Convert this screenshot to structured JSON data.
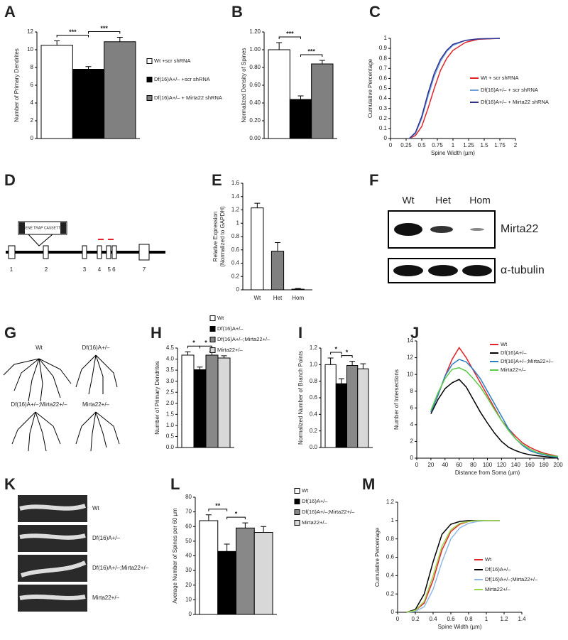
{
  "figure": {
    "panel_labels": [
      "A",
      "B",
      "C",
      "D",
      "E",
      "F",
      "G",
      "H",
      "I",
      "J",
      "K",
      "L",
      "M"
    ],
    "d": {
      "cassette": "GENE TRAP CASSETTE",
      "exons": [
        "1",
        "2",
        "3",
        "4",
        "5 6",
        "7"
      ]
    },
    "f": {
      "lanes": [
        "Wt",
        "Het",
        "Hom"
      ],
      "bands": [
        "Mirta22",
        "α-tubulin"
      ]
    },
    "g": {
      "labels": [
        "Wt",
        "Df(16)A+/–",
        "Df(16)A+/–;Mirta22+/–",
        "Mirta22+/–"
      ]
    },
    "k": {
      "labels": [
        "Wt",
        "Df(16)A+/–",
        "Df(16)A+/–;Mirta22+/–",
        "Mirta22+/–"
      ]
    }
  },
  "chart_data": [
    {
      "type": "bar",
      "ylabel": "Number of Primary Dendrites",
      "ylim": [
        0,
        12
      ],
      "yticks": [
        0,
        2,
        4,
        6,
        8,
        10,
        12
      ],
      "series": [
        {
          "name": "Wt +scr shRNA",
          "color": "#ffffff",
          "values": [
            10.5
          ],
          "errors": [
            0.5
          ]
        },
        {
          "name": "Df(16)A+/– +scr shRNA",
          "color": "#000000",
          "values": [
            7.8
          ],
          "errors": [
            0.3
          ]
        },
        {
          "name": "Df(16)A+/– + Mirta22 shRNA",
          "color": "#808080",
          "values": [
            10.9
          ],
          "errors": [
            0.5
          ]
        }
      ],
      "annotations": [
        "***",
        "***"
      ]
    },
    {
      "type": "bar",
      "ylabel": "Normalized Density of Spines",
      "ylim": [
        0,
        1.2
      ],
      "yticks": [
        {
          "value": 0,
          "label": "0.00"
        },
        {
          "value": 0.2,
          "label": "0.20"
        },
        {
          "value": 0.4,
          "label": "0.40"
        },
        {
          "value": 0.6,
          "label": "0.60"
        },
        {
          "value": 0.8,
          "label": "0.80"
        },
        {
          "value": 1,
          "label": "1.00"
        },
        {
          "value": 1.2,
          "label": "1.20"
        }
      ],
      "series": [
        {
          "color": "#ffffff",
          "values": [
            1.0
          ],
          "errors": [
            0.08
          ]
        },
        {
          "color": "#000000",
          "values": [
            0.44
          ],
          "errors": [
            0.04
          ]
        },
        {
          "color": "#808080",
          "values": [
            0.84
          ],
          "errors": [
            0.04
          ]
        }
      ],
      "annotations": [
        "***",
        "***"
      ]
    },
    {
      "type": "line",
      "xlabel": "Spine Width (µm)",
      "ylabel": "Cumulative  Percentage",
      "xlim": [
        0,
        2
      ],
      "xticks": [
        0,
        0.25,
        0.5,
        0.75,
        1,
        1.25,
        1.5,
        1.75,
        2
      ],
      "ylim": [
        0,
        1
      ],
      "yticks": [
        0,
        0.1,
        0.2,
        0.3,
        0.4,
        0.5,
        0.6,
        0.7,
        0.8,
        0.9,
        1
      ],
      "x": [
        0.3,
        0.4,
        0.5,
        0.6,
        0.7,
        0.8,
        0.9,
        1.0,
        1.2,
        1.4,
        1.75
      ],
      "series": [
        {
          "name": "Wt + scr shRNA",
          "color": "#e0242a",
          "values": [
            0,
            0.03,
            0.12,
            0.3,
            0.5,
            0.68,
            0.8,
            0.88,
            0.96,
            0.99,
            1
          ]
        },
        {
          "name": "Df(16)A+/– + scr shRNA",
          "color": "#6f9fd8",
          "values": [
            0,
            0.05,
            0.2,
            0.42,
            0.62,
            0.77,
            0.87,
            0.93,
            0.98,
            0.995,
            1
          ]
        },
        {
          "name": "Df(16)A+/– + Mirta22 shRNA",
          "color": "#2e3192",
          "values": [
            0,
            0.06,
            0.22,
            0.45,
            0.65,
            0.79,
            0.88,
            0.94,
            0.98,
            0.995,
            1
          ]
        }
      ]
    },
    {
      "type": "bar",
      "ylabel": [
        "Relative Expression",
        "(Normalized to GAPDH)"
      ],
      "ylim": [
        0,
        1.6
      ],
      "yticks": [
        0,
        0.2,
        0.4,
        0.6,
        0.8,
        1,
        1.2,
        1.4,
        1.6
      ],
      "categories": [
        "Wt",
        "Het",
        "Hom"
      ],
      "values": [
        1.23,
        0.58,
        0.01
      ],
      "errors": [
        0.07,
        0.13,
        0.01
      ],
      "colors": [
        "#ffffff",
        "#808080",
        "#000000"
      ]
    },
    {
      "type": "bar",
      "ylabel": "Number of Primary Dendrites",
      "ylim": [
        0,
        4.5
      ],
      "yticks": [
        {
          "value": 0,
          "label": "0.0"
        },
        {
          "value": 0.5,
          "label": "0.5"
        },
        {
          "value": 1,
          "label": "1.0"
        },
        {
          "value": 1.5,
          "label": "1.5"
        },
        {
          "value": 2,
          "label": "2.0"
        },
        {
          "value": 2.5,
          "label": "2.5"
        },
        {
          "value": 3,
          "label": "3.0"
        },
        {
          "value": 3.5,
          "label": "3.5"
        },
        {
          "value": 4,
          "label": "4.0"
        },
        {
          "value": 4.5,
          "label": "4.5"
        }
      ],
      "series": [
        {
          "name": "Wt",
          "color": "#ffffff",
          "values": [
            4.18
          ],
          "errors": [
            0.15
          ]
        },
        {
          "name": "Df(16)A+/–",
          "color": "#000000",
          "values": [
            3.52
          ],
          "errors": [
            0.12
          ]
        },
        {
          "name": "Df(16)A+/–;Mirta22+/–",
          "color": "#888888",
          "values": [
            4.18
          ],
          "errors": [
            0.15
          ]
        },
        {
          "name": "Mirta22+/–",
          "color": "#d8d8d8",
          "values": [
            4.05
          ],
          "errors": [
            0.1
          ]
        }
      ],
      "annotations": [
        "*",
        "*"
      ]
    },
    {
      "type": "bar",
      "ylabel": "Normalized Number of Branch Points",
      "ylim": [
        0,
        1.2
      ],
      "yticks": [
        {
          "value": 0,
          "label": "0.0"
        },
        {
          "value": 0.2,
          "label": "0.2"
        },
        {
          "value": 0.4,
          "label": "0.4"
        },
        {
          "value": 0.6,
          "label": "0.6"
        },
        {
          "value": 0.8,
          "label": "0.8"
        },
        {
          "value": 1,
          "label": "1.0"
        },
        {
          "value": 1.2,
          "label": "1.2"
        }
      ],
      "series": [
        {
          "color": "#ffffff",
          "values": [
            1.0
          ],
          "errors": [
            0.08
          ]
        },
        {
          "color": "#000000",
          "values": [
            0.77
          ],
          "errors": [
            0.06
          ]
        },
        {
          "color": "#888888",
          "values": [
            0.99
          ],
          "errors": [
            0.05
          ]
        },
        {
          "color": "#d8d8d8",
          "values": [
            0.95
          ],
          "errors": [
            0.06
          ]
        }
      ],
      "annotations": [
        "*",
        "*"
      ]
    },
    {
      "type": "line",
      "xlabel": "Distance from Soma (µm)",
      "ylabel": "Number of Intersections",
      "xlim": [
        0,
        200
      ],
      "xticks": [
        0,
        20,
        40,
        60,
        80,
        100,
        120,
        140,
        160,
        180,
        200
      ],
      "ylim": [
        0,
        14
      ],
      "yticks": [
        0,
        2,
        4,
        6,
        8,
        10,
        12,
        14
      ],
      "x": [
        20,
        30,
        40,
        50,
        60,
        70,
        80,
        90,
        100,
        110,
        120,
        130,
        140,
        150,
        160,
        170,
        180,
        190,
        200
      ],
      "series": [
        {
          "name": "Wt",
          "color": "#e0242a",
          "values": [
            5.5,
            7.5,
            9.8,
            11.8,
            13.2,
            12,
            10.5,
            9,
            7.5,
            6,
            4.5,
            3.5,
            2.6,
            1.8,
            1.3,
            0.9,
            0.6,
            0.4,
            0.2
          ]
        },
        {
          "name": "Df(16)A+/–",
          "color": "#000000",
          "values": [
            5.3,
            7,
            8.3,
            9,
            9.4,
            8.5,
            7,
            5.5,
            4.2,
            3,
            2,
            1.3,
            0.9,
            0.6,
            0.4,
            0.3,
            0.2,
            0.1,
            0
          ]
        },
        {
          "name": "Df(16)A+/–;Mirta22+/–",
          "color": "#2b7fc0",
          "values": [
            5.5,
            7.5,
            9.8,
            11.2,
            11.8,
            11.5,
            10.6,
            9.5,
            8,
            6.5,
            5,
            3.5,
            2.3,
            1.5,
            0.9,
            0.6,
            0.4,
            0.2,
            0.1
          ]
        },
        {
          "name": "Mirta22+/–",
          "color": "#5cc94a",
          "values": [
            5.7,
            7.8,
            9.5,
            10.6,
            10.8,
            10.4,
            9.5,
            8.5,
            7.2,
            5.8,
            4.5,
            3.3,
            2.3,
            1.6,
            1.1,
            0.7,
            0.5,
            0.3,
            0.2
          ]
        }
      ]
    },
    {
      "type": "bar",
      "ylabel": "Average Number of Spines per 60 µm",
      "ylim": [
        0,
        80
      ],
      "yticks": [
        0,
        10,
        20,
        30,
        40,
        50,
        60,
        70,
        80
      ],
      "series": [
        {
          "name": "Wt",
          "color": "#ffffff",
          "values": [
            64
          ],
          "errors": [
            4
          ]
        },
        {
          "name": "Df(16)A+/–",
          "color": "#000000",
          "values": [
            43
          ],
          "errors": [
            5
          ]
        },
        {
          "name": "Df(16)A+/–;Mirta22+/–",
          "color": "#888888",
          "values": [
            59
          ],
          "errors": [
            3.5
          ]
        },
        {
          "name": "Mirta22+/–",
          "color": "#d8d8d8",
          "values": [
            56
          ],
          "errors": [
            4
          ]
        }
      ],
      "annotations": [
        "**",
        "*"
      ]
    },
    {
      "type": "line",
      "xlabel": "Spine Width (µm)",
      "ylabel": "Cumulative Percentage",
      "xlim": [
        0,
        1.4
      ],
      "xticks": [
        0,
        0.2,
        0.4,
        0.6,
        0.8,
        1,
        1.2,
        1.4
      ],
      "ylim": [
        0,
        1.2
      ],
      "yticks": [
        0,
        0.2,
        0.4,
        0.6,
        0.8,
        1,
        1.2
      ],
      "x": [
        0.1,
        0.2,
        0.3,
        0.4,
        0.5,
        0.6,
        0.7,
        0.8,
        0.9,
        1.0,
        1.15
      ],
      "series": [
        {
          "name": "Wt",
          "color": "#e0242a",
          "values": [
            0,
            0.02,
            0.1,
            0.35,
            0.68,
            0.88,
            0.96,
            0.99,
            1,
            1,
            1
          ]
        },
        {
          "name": "Df(16)A+/–",
          "color": "#000000",
          "values": [
            0,
            0.03,
            0.2,
            0.55,
            0.85,
            0.96,
            0.99,
            1,
            1,
            1,
            1
          ]
        },
        {
          "name": "Df(16)A+/–;Mirta22+/–",
          "color": "#8fb8e6",
          "values": [
            0,
            0.01,
            0.06,
            0.25,
            0.55,
            0.8,
            0.92,
            0.97,
            0.99,
            1,
            1
          ]
        },
        {
          "name": "Mirta22+/–",
          "color": "#9ad64a",
          "values": [
            0,
            0.02,
            0.12,
            0.4,
            0.72,
            0.9,
            0.97,
            0.99,
            1,
            1,
            1
          ]
        }
      ]
    }
  ]
}
